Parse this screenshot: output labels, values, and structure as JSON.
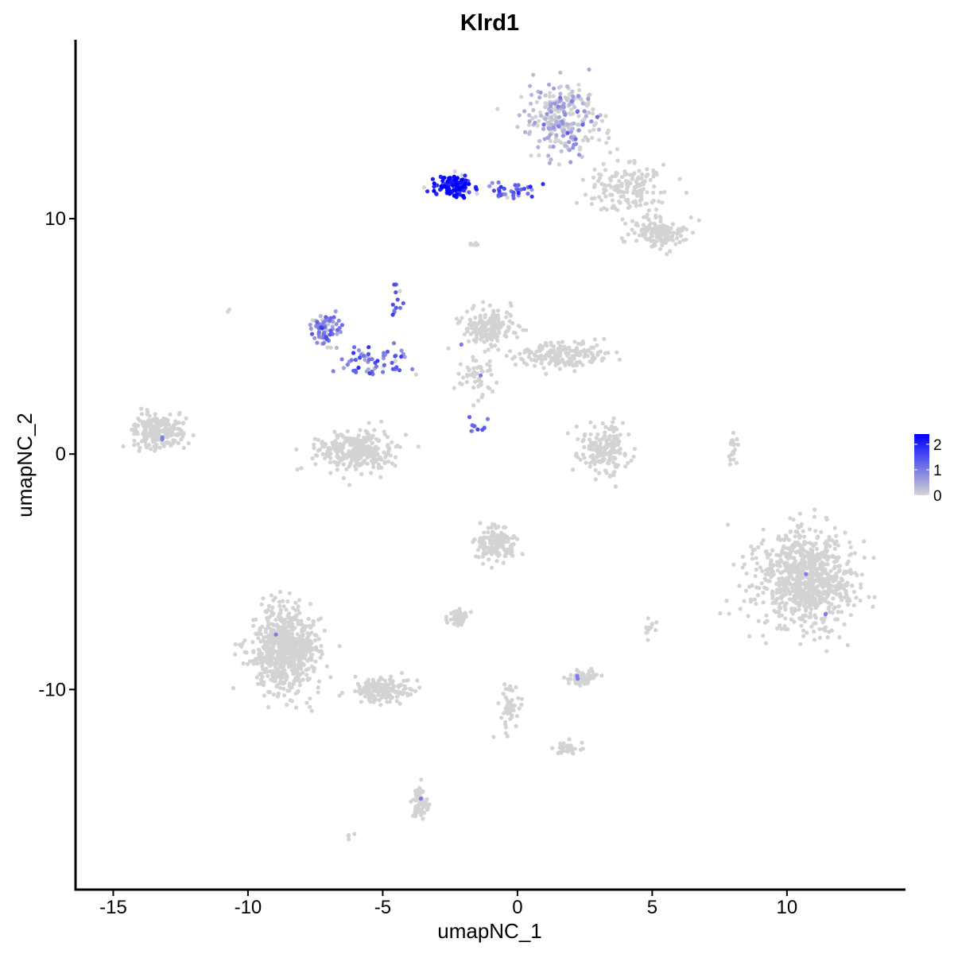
{
  "chart_data": {
    "type": "scatter",
    "title": "Klrd1",
    "xlabel": "umapNC_1",
    "ylabel": "umapNC_2",
    "xlim": [
      -16.4,
      14.4
    ],
    "ylim": [
      -18.5,
      17.6
    ],
    "xticks": [
      -15,
      -10,
      -5,
      0,
      5,
      10
    ],
    "yticks": [
      -10,
      0,
      10
    ],
    "xtick_labels": [
      "-15",
      "-10",
      "-5",
      "0",
      "5",
      "10"
    ],
    "ytick_labels": [
      "-10",
      "0",
      "10"
    ],
    "color_scale": {
      "low": "#d3d3d3",
      "high": "#0000ff",
      "range": [
        0,
        2.4
      ],
      "ticks": [
        0,
        1,
        2
      ],
      "tick_labels": [
        "0",
        "1",
        "2"
      ]
    },
    "legend_position": "right",
    "grid": false,
    "point_color_default": "#d3d3d3",
    "clusters": [
      {
        "center": [
          1.7,
          14.3
        ],
        "spread": [
          1.1,
          1.4
        ],
        "n": 260,
        "expr": 0.25
      },
      {
        "center": [
          4.0,
          11.3
        ],
        "spread": [
          1.3,
          1.0
        ],
        "n": 160,
        "expr": 0.0
      },
      {
        "center": [
          5.2,
          9.4
        ],
        "spread": [
          0.9,
          0.6
        ],
        "n": 140,
        "expr": 0.0
      },
      {
        "center": [
          -2.4,
          11.4
        ],
        "spread": [
          0.7,
          0.45
        ],
        "n": 120,
        "expr": 2.1
      },
      {
        "center": [
          -0.3,
          11.2
        ],
        "spread": [
          1.2,
          0.3
        ],
        "n": 40,
        "expr": 1.3
      },
      {
        "center": [
          -7.1,
          5.3
        ],
        "spread": [
          0.45,
          0.7
        ],
        "n": 80,
        "expr": 0.9
      },
      {
        "center": [
          -5.3,
          4.0
        ],
        "spread": [
          1.2,
          0.5
        ],
        "n": 60,
        "expr": 1.1
      },
      {
        "center": [
          -4.5,
          6.5
        ],
        "spread": [
          0.2,
          0.7
        ],
        "n": 12,
        "expr": 1.4
      },
      {
        "center": [
          -1.1,
          5.3
        ],
        "spread": [
          0.9,
          0.8
        ],
        "n": 170,
        "expr": 0.0
      },
      {
        "center": [
          1.6,
          4.2
        ],
        "spread": [
          1.6,
          0.5
        ],
        "n": 170,
        "expr": 0.0
      },
      {
        "center": [
          -1.5,
          3.3
        ],
        "spread": [
          0.6,
          0.8
        ],
        "n": 50,
        "expr": 0.0
      },
      {
        "center": [
          -1.6,
          1.2
        ],
        "spread": [
          0.5,
          0.4
        ],
        "n": 12,
        "expr": 1.2
      },
      {
        "center": [
          -13.3,
          1.0
        ],
        "spread": [
          0.9,
          0.7
        ],
        "n": 240,
        "expr": 0.0
      },
      {
        "center": [
          -6.0,
          0.1
        ],
        "spread": [
          1.3,
          0.8
        ],
        "n": 300,
        "expr": 0.0
      },
      {
        "center": [
          3.2,
          0.2
        ],
        "spread": [
          0.9,
          1.0
        ],
        "n": 170,
        "expr": 0.0
      },
      {
        "center": [
          8.0,
          0.2
        ],
        "spread": [
          0.15,
          0.5
        ],
        "n": 20,
        "expr": 0.0
      },
      {
        "center": [
          10.7,
          -5.3
        ],
        "spread": [
          1.6,
          1.8
        ],
        "n": 800,
        "expr": 0.0
      },
      {
        "center": [
          -0.8,
          -3.8
        ],
        "spread": [
          0.7,
          0.6
        ],
        "n": 140,
        "expr": 0.0
      },
      {
        "center": [
          -2.2,
          -7.0
        ],
        "spread": [
          0.45,
          0.3
        ],
        "n": 50,
        "expr": 0.0
      },
      {
        "center": [
          -8.6,
          -8.3
        ],
        "spread": [
          1.1,
          1.6
        ],
        "n": 700,
        "expr": 0.0
      },
      {
        "center": [
          -5.0,
          -10.0
        ],
        "spread": [
          1.0,
          0.5
        ],
        "n": 170,
        "expr": 0.0
      },
      {
        "center": [
          2.4,
          -9.5
        ],
        "spread": [
          0.5,
          0.25
        ],
        "n": 60,
        "expr": 0.0
      },
      {
        "center": [
          -0.3,
          -10.8
        ],
        "spread": [
          0.3,
          1.0
        ],
        "n": 50,
        "expr": 0.0
      },
      {
        "center": [
          1.9,
          -12.5
        ],
        "spread": [
          0.4,
          0.25
        ],
        "n": 30,
        "expr": 0.0
      },
      {
        "center": [
          -3.6,
          -14.8
        ],
        "spread": [
          0.25,
          0.6
        ],
        "n": 60,
        "expr": 0.0
      },
      {
        "center": [
          4.9,
          -7.4
        ],
        "spread": [
          0.2,
          0.3
        ],
        "n": 15,
        "expr": 0.0
      },
      {
        "center": [
          -1.6,
          8.9
        ],
        "spread": [
          0.2,
          0.1
        ],
        "n": 6,
        "expr": 0.0
      },
      {
        "center": [
          -10.7,
          6.1
        ],
        "spread": [
          0.05,
          0.05
        ],
        "n": 2,
        "expr": 0.0
      },
      {
        "center": [
          -6.2,
          -16.2
        ],
        "spread": [
          0.15,
          0.1
        ],
        "n": 4,
        "expr": 0.0
      }
    ]
  }
}
